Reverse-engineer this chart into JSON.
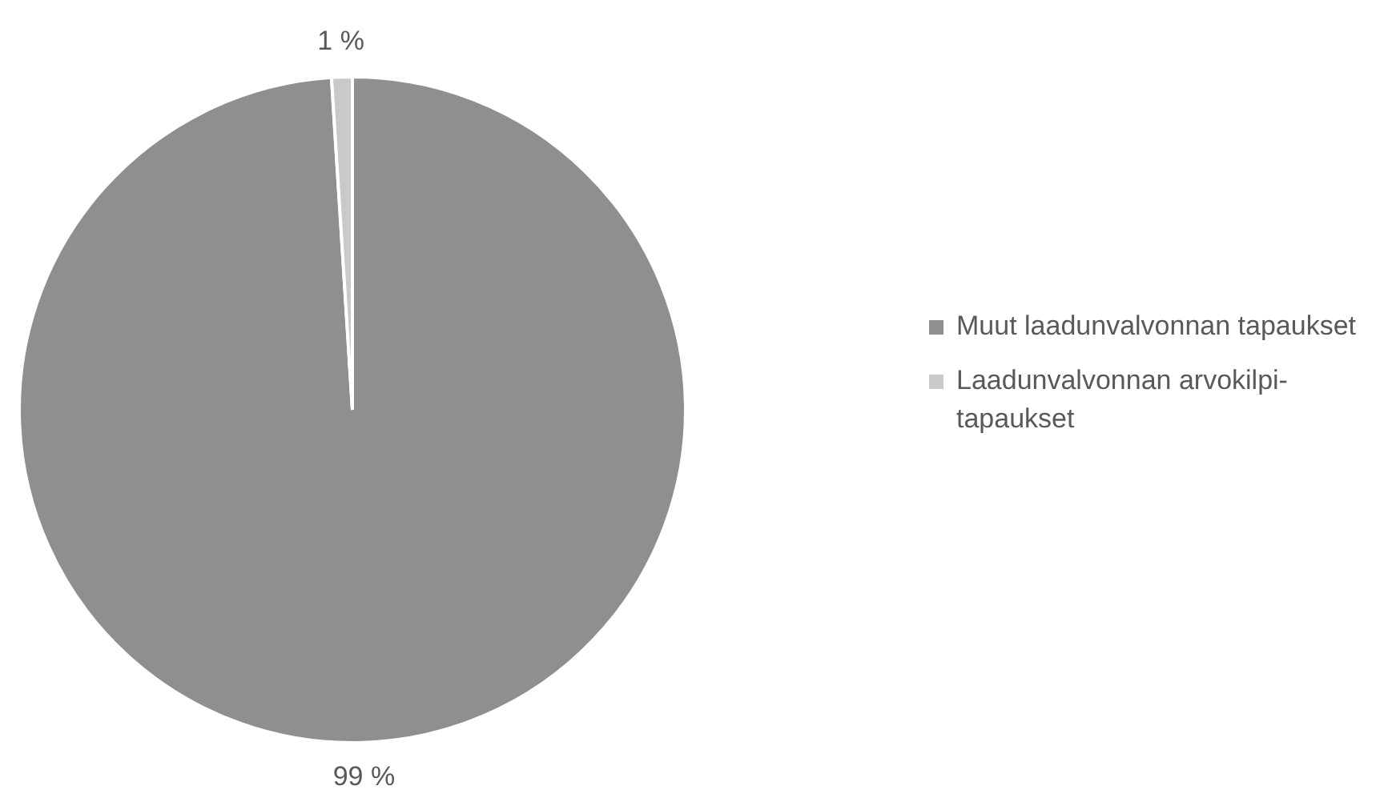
{
  "chart_data": {
    "type": "pie",
    "categories": [
      "Muut laadunvalvonnan tapaukset",
      "Laadunvalvonnan arvokilpi-tapaukset"
    ],
    "values": [
      99,
      1
    ],
    "colors": [
      "#8f8f8f",
      "#c9c9c9"
    ],
    "value_labels": [
      "99 %",
      "1 %"
    ],
    "legend": "right"
  }
}
